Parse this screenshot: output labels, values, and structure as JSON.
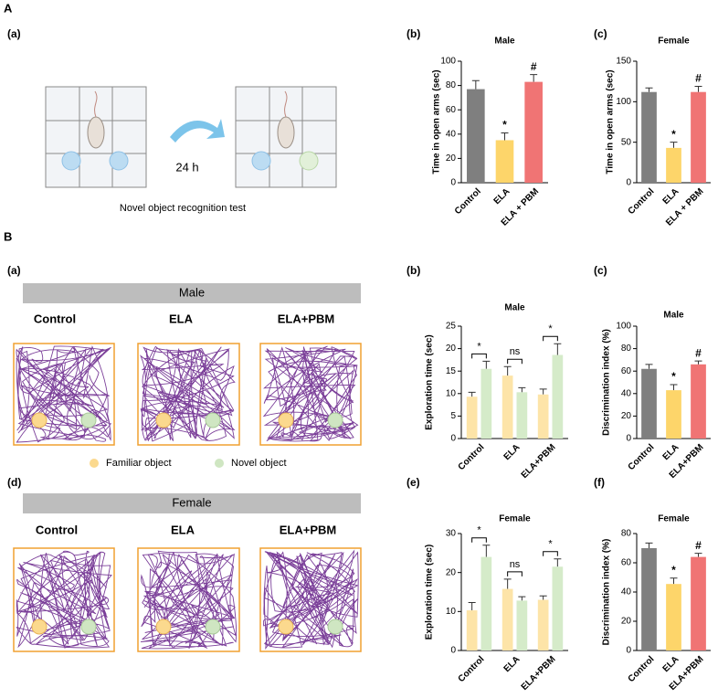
{
  "figure": {
    "section_a": "A",
    "section_b": "B",
    "panel_a": {
      "label": "(a)",
      "interval": "24 h",
      "caption": "Novel object recognition test"
    },
    "tracks_male": {
      "label": "(a)",
      "header": "Male",
      "groups": [
        "Control",
        "ELA",
        "ELA+PBM"
      ]
    },
    "tracks_female": {
      "label": "(d)",
      "header": "Female",
      "groups": [
        "Control",
        "ELA",
        "ELA+PBM"
      ]
    },
    "legend": {
      "familiar": "Familiar object",
      "novel": "Novel object",
      "familiar_color": "#fbd98e",
      "novel_color": "#cfe6c2"
    }
  },
  "chart_data": [
    {
      "panel": "(b)",
      "type": "bar",
      "title": "Male",
      "y_label": "Time in open arms (sec)",
      "categories": [
        "Control",
        "ELA",
        "ELA + PBM"
      ],
      "values": [
        77,
        35,
        83
      ],
      "errors": [
        7,
        6,
        6
      ],
      "colors": [
        "#7f7f7f",
        "#fdd56a",
        "#f07474"
      ],
      "annotations": [
        null,
        "*",
        "#"
      ],
      "ylim": [
        0,
        100
      ],
      "yticks": [
        0,
        20,
        40,
        60,
        80,
        100
      ]
    },
    {
      "panel": "(c)",
      "type": "bar",
      "title": "Female",
      "y_label": "Time in open arms (sec)",
      "categories": [
        "Control",
        "ELA",
        "ELA + PBM"
      ],
      "values": [
        112,
        43,
        112
      ],
      "errors": [
        5,
        7,
        7
      ],
      "colors": [
        "#7f7f7f",
        "#fdd56a",
        "#f07474"
      ],
      "annotations": [
        null,
        "*",
        "#"
      ],
      "ylim": [
        0,
        150
      ],
      "yticks": [
        0,
        50,
        100,
        150
      ]
    },
    {
      "panel": "(b)",
      "type": "grouped_bar",
      "title": "Male",
      "y_label": "Exploration time (sec)",
      "categories": [
        "Control",
        "ELA",
        "ELA+PBM"
      ],
      "series": [
        {
          "color": "#fde4a8",
          "values": [
            9.3,
            14,
            9.8
          ],
          "errors": [
            1,
            2,
            1.2
          ]
        },
        {
          "color": "#d5ebc9",
          "values": [
            15.5,
            10.3,
            18.6
          ],
          "errors": [
            1.7,
            1,
            2.5
          ]
        }
      ],
      "comparisons": [
        "*",
        "ns",
        "*"
      ],
      "ylim": [
        0,
        25
      ],
      "yticks": [
        0,
        5,
        10,
        15,
        20,
        25
      ]
    },
    {
      "panel": "(c)",
      "type": "bar",
      "title": "Male",
      "y_label": "Discrimination index (%)",
      "categories": [
        "Control",
        "ELA",
        "ELA+PBM"
      ],
      "values": [
        62,
        43,
        66
      ],
      "errors": [
        4,
        5,
        3
      ],
      "colors": [
        "#7f7f7f",
        "#fdd56a",
        "#f07474"
      ],
      "annotations": [
        null,
        "*",
        "#"
      ],
      "ylim": [
        0,
        100
      ],
      "yticks": [
        0,
        20,
        40,
        60,
        80,
        100
      ]
    },
    {
      "panel": "(e)",
      "type": "grouped_bar",
      "title": "Female",
      "y_label": "Exploration time (sec)",
      "categories": [
        "Control",
        "ELA",
        "ELA+PBM"
      ],
      "series": [
        {
          "color": "#fde4a8",
          "values": [
            10.3,
            15.8,
            13
          ],
          "errors": [
            2,
            2.5,
            1
          ]
        },
        {
          "color": "#d5ebc9",
          "values": [
            24,
            12.8,
            21.5
          ],
          "errors": [
            3,
            1,
            2
          ]
        }
      ],
      "comparisons": [
        "*",
        "ns",
        "*"
      ],
      "ylim": [
        0,
        30
      ],
      "yticks": [
        0,
        10,
        20,
        30
      ]
    },
    {
      "panel": "(f)",
      "type": "bar",
      "title": "Female",
      "y_label": "Discrimination index (%)",
      "categories": [
        "Control",
        "ELA",
        "ELA+PBM"
      ],
      "values": [
        70,
        45.5,
        64
      ],
      "errors": [
        3.5,
        4,
        2.5
      ],
      "colors": [
        "#7f7f7f",
        "#fdd56a",
        "#f07474"
      ],
      "annotations": [
        null,
        "*",
        "#"
      ],
      "ylim": [
        0,
        80
      ],
      "yticks": [
        0,
        20,
        40,
        60,
        80
      ]
    }
  ]
}
